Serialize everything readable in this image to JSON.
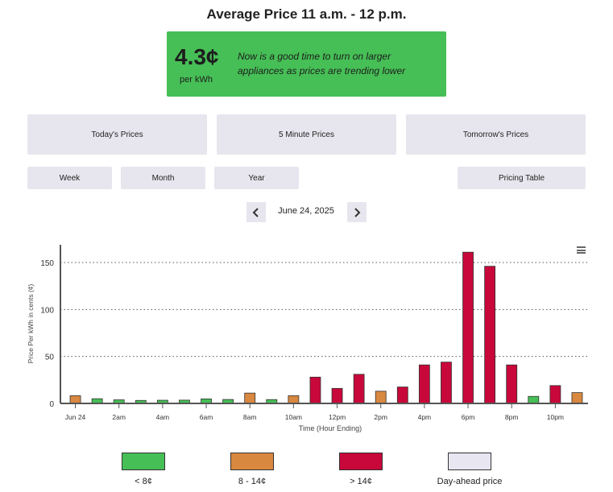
{
  "header": {
    "title": "Average Price 11 a.m. - 12 p.m."
  },
  "price_card": {
    "value": "4.3¢",
    "unit": "per kWh",
    "message": "Now is a good time to turn on larger appliances as prices are trending lower",
    "color": "#46bf56"
  },
  "buttons": {
    "today": "Today's Prices",
    "five_minute": "5 Minute Prices",
    "tomorrow": "Tomorrow's Prices",
    "week": "Week",
    "month": "Month",
    "year": "Year",
    "pricing_table": "Pricing Table"
  },
  "date_nav": {
    "prev_icon": "chevron-left-icon",
    "date": "June 24, 2025",
    "next_icon": "chevron-right-icon"
  },
  "chart_menu_icon": "hamburger-menu-icon",
  "chart_data": {
    "type": "bar",
    "xlabel": "Time (Hour Ending)",
    "ylabel": "Price Per kWh in cents (¢)",
    "ylim": [
      0,
      170
    ],
    "yticks": [
      0,
      50,
      100,
      150
    ],
    "grid": "horizontal dotted",
    "x_tick_labels": [
      "Jun 24",
      "2am",
      "4am",
      "6am",
      "8am",
      "10am",
      "12pm",
      "2pm",
      "4pm",
      "6pm",
      "8pm",
      "10pm"
    ],
    "categories": [
      "1",
      "2",
      "3",
      "4",
      "5",
      "6",
      "7",
      "8",
      "9",
      "10",
      "11",
      "12",
      "13",
      "14",
      "15",
      "16",
      "17",
      "18",
      "19",
      "20",
      "21",
      "22",
      "23",
      "24"
    ],
    "values": [
      8.2,
      5.0,
      3.8,
      3.2,
      3.4,
      3.5,
      4.8,
      4.2,
      11.0,
      4.1,
      8.2,
      28.0,
      16.0,
      31.0,
      13.0,
      17.5,
      41.0,
      44.0,
      161.0,
      146.0,
      41.0,
      7.5,
      19.0,
      11.5
    ],
    "bins": [
      "orange",
      "green",
      "green",
      "green",
      "green",
      "green",
      "green",
      "green",
      "orange",
      "green",
      "orange",
      "red",
      "red",
      "red",
      "orange",
      "red",
      "red",
      "red",
      "red",
      "red",
      "red",
      "green",
      "red",
      "orange"
    ],
    "colors": {
      "green": "#46bf56",
      "orange": "#d98840",
      "red": "#c8083a",
      "dayahead": "#e7e6f1"
    }
  },
  "legend": [
    {
      "label": "< 8¢",
      "color": "#46bf56"
    },
    {
      "label": "8 - 14¢",
      "color": "#d98840"
    },
    {
      "label": "> 14¢",
      "color": "#c8083a"
    },
    {
      "label": "Day-ahead price",
      "color": "#e7e6f1"
    }
  ]
}
